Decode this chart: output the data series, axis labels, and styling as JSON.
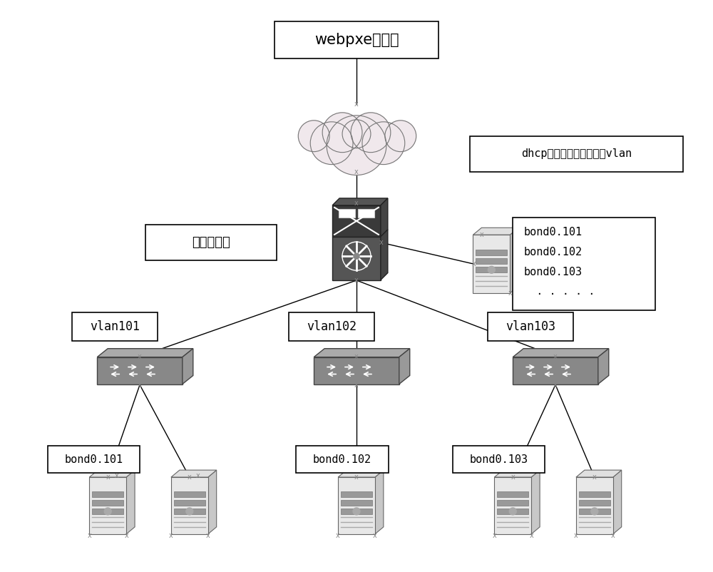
{
  "title": "webpxe控制台",
  "core_switch_label": "核心交换机",
  "dhcp_label": "dhcp服务器绑定机房所有vlan",
  "dhcp_list": [
    "bond0.101",
    "bond0.102",
    "bond0.103",
    "  . . . . ."
  ],
  "switch_labels": [
    "vlan101",
    "vlan102",
    "vlan103"
  ],
  "bond_labels": [
    "bond0.101",
    "bond0.102",
    "bond0.103"
  ],
  "bg_color": "#ffffff",
  "cloud_color": "#f0e8ec",
  "cloud_edge_color": "#888888"
}
